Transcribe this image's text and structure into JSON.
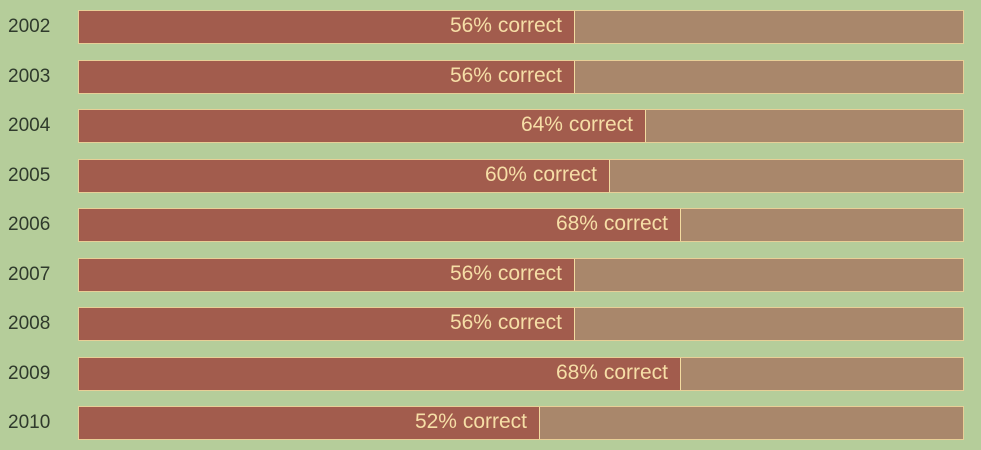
{
  "chart_data": {
    "type": "bar",
    "orientation": "horizontal",
    "categories": [
      "2002",
      "2003",
      "2004",
      "2005",
      "2006",
      "2007",
      "2008",
      "2009",
      "2010"
    ],
    "values": [
      56,
      56,
      64,
      60,
      68,
      56,
      56,
      68,
      52
    ],
    "value_labels": [
      "56% correct",
      "56% correct",
      "64% correct",
      "60% correct",
      "68% correct",
      "56% correct",
      "56% correct",
      "68% correct",
      "52% correct"
    ],
    "xlim": [
      0,
      100
    ],
    "grid": false,
    "legend": "none",
    "colors": {
      "background": "#b5cd9a",
      "fill": "#a25c4d",
      "track": "#a9876b",
      "border": "#e8cf97",
      "label_text": "#f6dea6",
      "category_text": "#2f3a2c"
    }
  }
}
